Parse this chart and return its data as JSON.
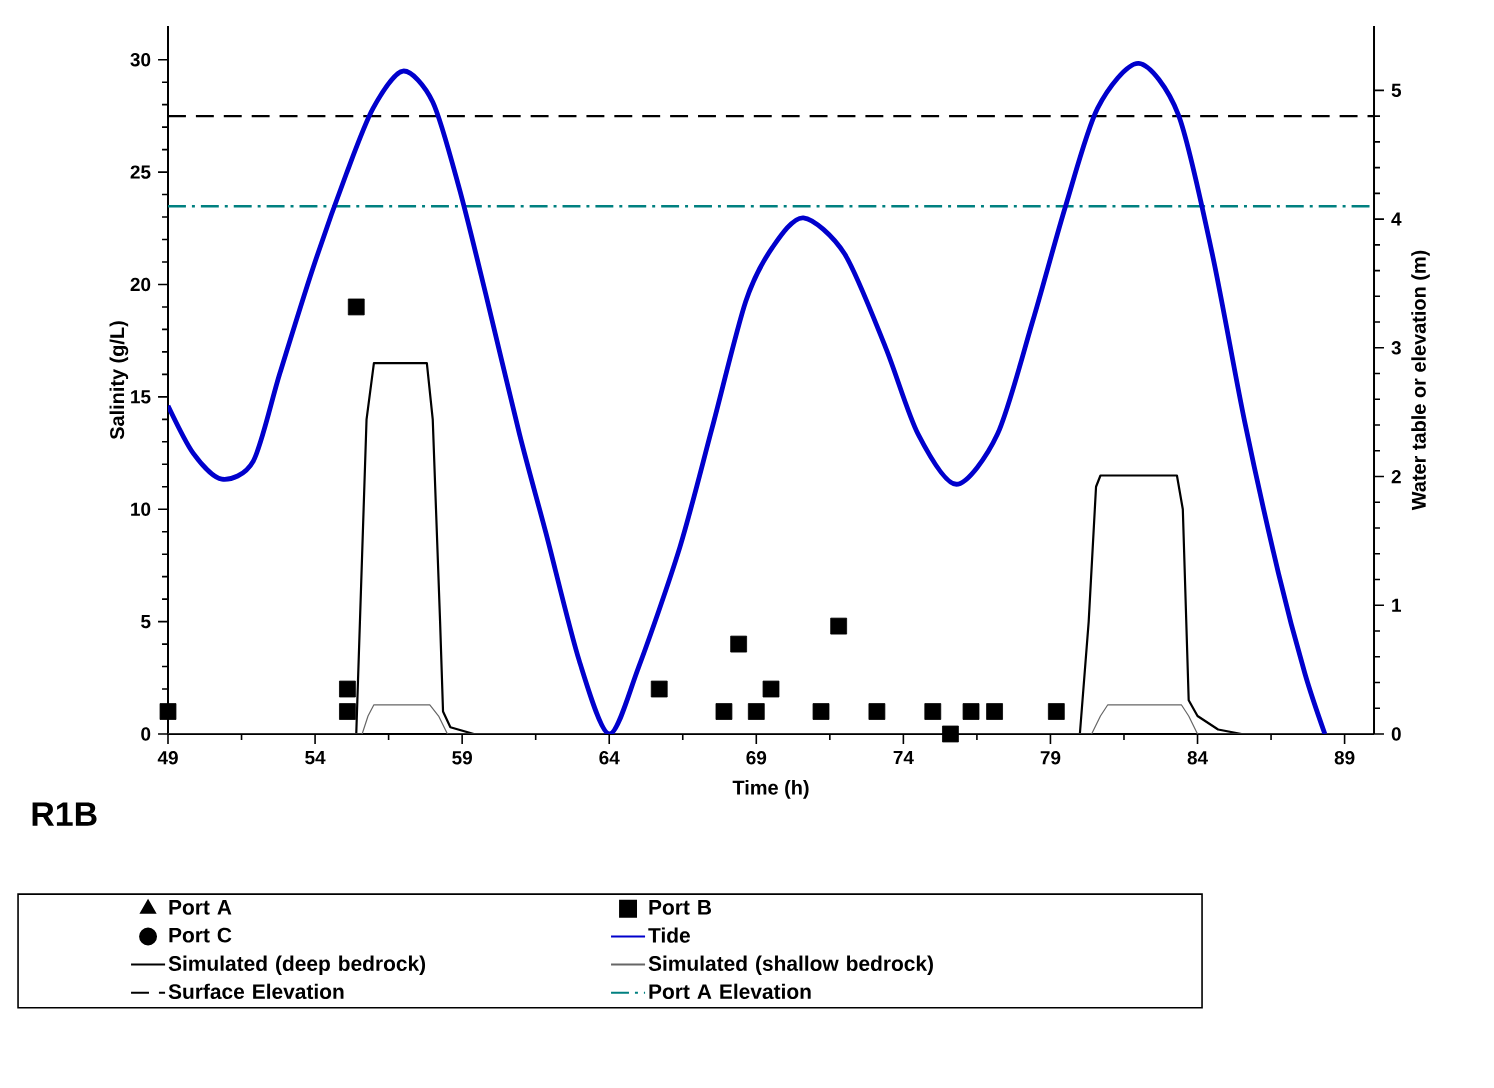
{
  "chart_data": {
    "type": "scatter",
    "title": "R1B",
    "xlabel": "Time (h)",
    "ylabel": "Salinity (g/L)",
    "y2label": "Water table or elevation (m)",
    "xlim": [
      49,
      90
    ],
    "xticks": [
      49,
      54,
      59,
      64,
      69,
      74,
      79,
      84,
      89
    ],
    "ylim": [
      0,
      31.5
    ],
    "yticks": [
      0,
      5,
      10,
      15,
      20,
      25,
      30
    ],
    "y2lim": [
      0,
      5.5
    ],
    "y2ticks": [
      0,
      1,
      2,
      3,
      4,
      5
    ],
    "legend": "bottom",
    "grid": false,
    "series": [
      {
        "name": "Port A",
        "marker": "triangle",
        "color": "#000000"
      },
      {
        "name": "Port B",
        "marker": "square",
        "color": "#000000",
        "x": [
          49,
          55.1,
          55.1,
          55.4,
          65.7,
          67.9,
          68.4,
          69.0,
          69.5,
          71.2,
          71.8,
          73.1,
          75.0,
          75.6,
          76.3,
          77.1,
          79.2
        ],
        "values": [
          1,
          2,
          1,
          19,
          2,
          1,
          4,
          1,
          2,
          1,
          4.8,
          1,
          1,
          0,
          1,
          1,
          1
        ]
      },
      {
        "name": "Port C",
        "marker": "circle",
        "color": "#000000"
      },
      {
        "name": "Tide",
        "type": "line",
        "axis": "y2",
        "marker": "none",
        "color": "#0000cc",
        "x": [
          49,
          49.86,
          50.83,
          51.9,
          52.8,
          53.93,
          55.06,
          55.97,
          56.99,
          58.0,
          58.9,
          59.8,
          60.95,
          61.85,
          62.98,
          64.0,
          65.0,
          66.4,
          67.5,
          68.64,
          69.55,
          70.6,
          72.0,
          73.4,
          74.5,
          75.8,
          77.2,
          78.4,
          79.5,
          80.6,
          82.0,
          83.35,
          84.5,
          85.6,
          86.75,
          87.65,
          88.33
        ],
        "values": [
          2.55,
          2.18,
          1.98,
          2.12,
          2.8,
          3.62,
          4.35,
          4.86,
          5.15,
          4.91,
          4.24,
          3.42,
          2.33,
          1.56,
          0.57,
          0,
          0.52,
          1.45,
          2.38,
          3.36,
          3.78,
          4.01,
          3.73,
          3.0,
          2.33,
          1.94,
          2.33,
          3.21,
          4.09,
          4.86,
          5.21,
          4.81,
          3.73,
          2.43,
          1.25,
          0.47,
          0
        ]
      },
      {
        "name": "Simulated (deep bedrock)",
        "type": "line",
        "marker": "none",
        "color": "#000000",
        "x": [
          49,
          55.4,
          55.6,
          55.75,
          56.0,
          57.8,
          58.0,
          58.25,
          58.35,
          58.6,
          59.4,
          80.0,
          80.3,
          80.55,
          80.7,
          83.3,
          83.5,
          83.7,
          84.0,
          84.7,
          85.5,
          90
        ],
        "values": [
          0,
          0,
          8,
          14,
          16.5,
          16.5,
          14,
          5,
          1,
          0.3,
          0,
          0,
          5,
          11,
          11.5,
          11.5,
          10,
          1.5,
          0.8,
          0.2,
          0,
          0
        ]
      },
      {
        "name": "Simulated (shallow bedrock)",
        "type": "line",
        "marker": "none",
        "color": "#666666",
        "x": [
          49,
          55.6,
          55.8,
          56.0,
          57.9,
          58.2,
          58.5,
          80.4,
          80.7,
          80.95,
          83.45,
          83.7,
          84.0,
          90
        ],
        "values": [
          0,
          0,
          0.8,
          1.3,
          1.3,
          0.8,
          0,
          0,
          0.8,
          1.3,
          1.3,
          0.8,
          0,
          0
        ]
      }
    ],
    "ref_lines": [
      {
        "axis": "y2",
        "value": 4.8,
        "label": "Surface Elevation",
        "color": "#000000",
        "line_style": "dashed"
      },
      {
        "axis": "y2",
        "value": 4.1,
        "label": "Port A Elevation",
        "color": "#008080",
        "line_style": "dashdot"
      }
    ]
  }
}
